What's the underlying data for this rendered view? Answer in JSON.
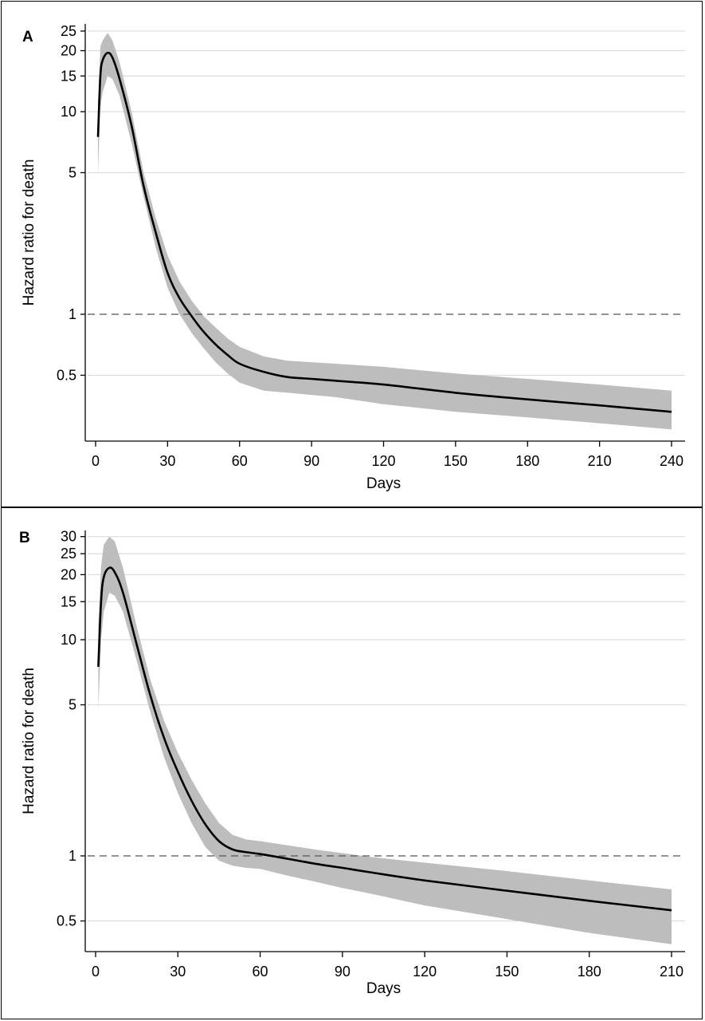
{
  "chart_data": [
    {
      "type": "line",
      "panel_label": "A",
      "xlabel": "Days",
      "ylabel": "Hazard ratio for death",
      "y_scale": "log",
      "x_ticks": [
        0,
        30,
        60,
        90,
        120,
        150,
        180,
        210,
        240
      ],
      "y_ticks": [
        0.5,
        1,
        5,
        10,
        15,
        20,
        25
      ],
      "xlim": [
        0,
        240
      ],
      "grid": "horizontal",
      "reference_line": {
        "y": 1,
        "style": "dashed"
      },
      "series": [
        {
          "band": "95% CI",
          "x": [
            1,
            2,
            3,
            5,
            7,
            10,
            15,
            20,
            25,
            30,
            35,
            40,
            45,
            50,
            55,
            60,
            70,
            80,
            90,
            100,
            120,
            150,
            180,
            210,
            240
          ],
          "y": [
            7.5,
            15.0,
            18.0,
            19.5,
            18.5,
            14.5,
            8.5,
            4.3,
            2.55,
            1.6,
            1.2,
            0.98,
            0.82,
            0.71,
            0.63,
            0.57,
            0.52,
            0.49,
            0.48,
            0.47,
            0.45,
            0.41,
            0.38,
            0.355,
            0.33
          ],
          "lower": [
            5.0,
            10.5,
            12.5,
            15.0,
            14.5,
            12.0,
            7.0,
            3.8,
            2.15,
            1.35,
            1.0,
            0.81,
            0.68,
            0.58,
            0.51,
            0.46,
            0.42,
            0.41,
            0.4,
            0.39,
            0.36,
            0.33,
            0.31,
            0.29,
            0.27
          ],
          "upper": [
            11.0,
            21.0,
            22.5,
            24.5,
            22.5,
            17.5,
            10.0,
            5.0,
            3.0,
            1.95,
            1.45,
            1.17,
            0.98,
            0.86,
            0.76,
            0.69,
            0.62,
            0.59,
            0.58,
            0.57,
            0.55,
            0.51,
            0.48,
            0.45,
            0.42
          ]
        }
      ]
    },
    {
      "type": "line",
      "panel_label": "B",
      "xlabel": "Days",
      "ylabel": "Hazard ratio for death",
      "y_scale": "log",
      "x_ticks": [
        0,
        30,
        60,
        90,
        120,
        150,
        180,
        210
      ],
      "y_ticks": [
        0.5,
        1,
        5,
        10,
        15,
        20,
        25,
        30
      ],
      "xlim": [
        0,
        210
      ],
      "grid": "horizontal",
      "reference_line": {
        "y": 1,
        "style": "dashed"
      },
      "series": [
        {
          "band": "95% CI",
          "x": [
            1,
            2,
            3,
            5,
            7,
            10,
            15,
            20,
            25,
            30,
            35,
            40,
            45,
            50,
            55,
            60,
            70,
            80,
            90,
            100,
            120,
            150,
            180,
            210
          ],
          "y": [
            7.5,
            15.0,
            19.5,
            21.5,
            20.5,
            16.5,
            9.5,
            5.5,
            3.5,
            2.45,
            1.8,
            1.4,
            1.17,
            1.07,
            1.04,
            1.02,
            0.97,
            0.92,
            0.88,
            0.84,
            0.77,
            0.69,
            0.62,
            0.56
          ],
          "lower": [
            4.8,
            10.0,
            13.5,
            16.5,
            16.0,
            13.5,
            8.0,
            4.6,
            2.85,
            1.95,
            1.42,
            1.1,
            0.95,
            0.9,
            0.88,
            0.87,
            0.81,
            0.76,
            0.71,
            0.67,
            0.59,
            0.51,
            0.44,
            0.39
          ],
          "upper": [
            11.5,
            22.0,
            27.5,
            30.0,
            28.5,
            21.5,
            11.5,
            6.5,
            4.2,
            3.0,
            2.25,
            1.75,
            1.42,
            1.25,
            1.19,
            1.17,
            1.12,
            1.07,
            1.03,
            0.99,
            0.93,
            0.85,
            0.77,
            0.7
          ]
        }
      ]
    }
  ]
}
